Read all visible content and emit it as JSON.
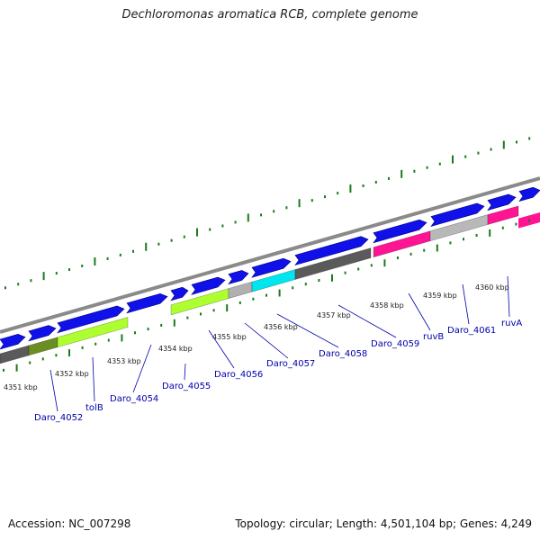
{
  "title": "Dechloromonas aromatica RCB, complete genome",
  "footer": {
    "accession": "Accession: NC_007298",
    "summary": "Topology: circular; Length: 4,501,104 bp; Genes: 4,249"
  },
  "colors": {
    "forward_gene": "#1010e8",
    "gc_tick": "#1a7a1a",
    "backbone": "#8a8a8a",
    "gene_label": "#0000aa"
  },
  "kbp_ticks": [
    {
      "label": "4351 kbp"
    },
    {
      "label": "4352 kbp"
    },
    {
      "label": "4353 kbp"
    },
    {
      "label": "4354 kbp"
    },
    {
      "label": "4355 kbp"
    },
    {
      "label": "4356 kbp"
    },
    {
      "label": "4357 kbp"
    },
    {
      "label": "4358 kbp"
    },
    {
      "label": "4359 kbp"
    },
    {
      "label": "4360 kbp"
    }
  ],
  "gene_labels": [
    {
      "label": "Daro_4052"
    },
    {
      "label": "tolB"
    },
    {
      "label": "Daro_4054"
    },
    {
      "label": "Daro_4055"
    },
    {
      "label": "Daro_4056"
    },
    {
      "label": "Daro_4057"
    },
    {
      "label": "Daro_4058"
    },
    {
      "label": "Daro_4059"
    },
    {
      "label": "ruvB"
    },
    {
      "label": "Daro_4061"
    },
    {
      "label": "ruvA"
    }
  ],
  "reverse_genes": [
    {
      "color": "#5a5a5a"
    },
    {
      "color": "#6b8e23"
    },
    {
      "color": "#adff2f"
    },
    {
      "color": "#adff2f"
    },
    {
      "color": "#b0b0b0"
    },
    {
      "color": "#00e5ee"
    },
    {
      "color": "#5a5a5a"
    },
    {
      "color": "#ff1493"
    },
    {
      "color": "#b8b8b8"
    },
    {
      "color": "#ff1493"
    }
  ]
}
